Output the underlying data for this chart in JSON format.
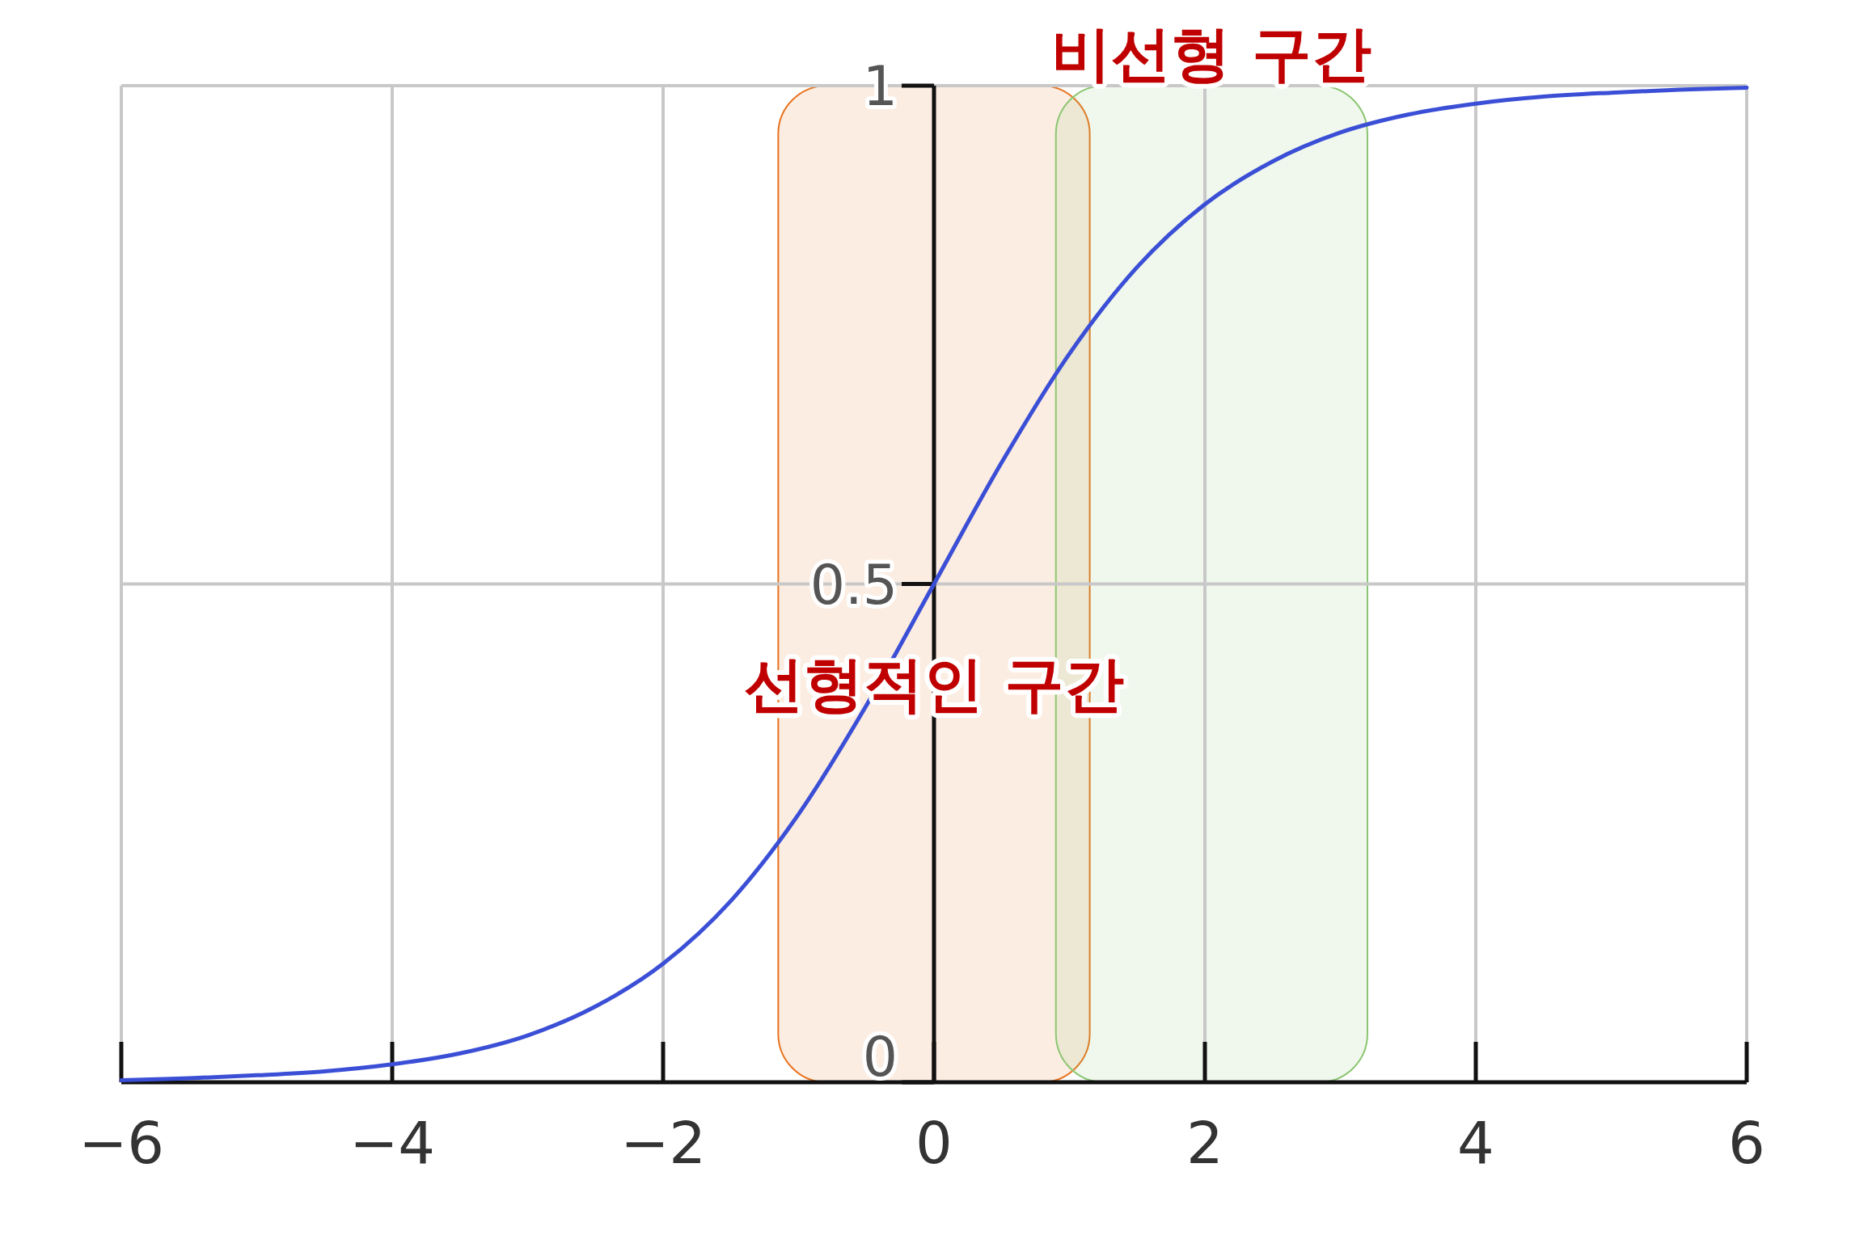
{
  "chart_data": {
    "type": "line",
    "x": [
      -6,
      -5.5,
      -5,
      -4.5,
      -4,
      -3.5,
      -3,
      -2.5,
      -2,
      -1.5,
      -1,
      -0.5,
      0,
      0.5,
      1,
      1.5,
      2,
      2.5,
      3,
      3.5,
      4,
      4.5,
      5,
      5.5,
      6
    ],
    "series": [
      {
        "color": "#3b4fd6",
        "values": [
          0.002,
          0.004,
          0.007,
          0.011,
          0.018,
          0.029,
          0.047,
          0.076,
          0.119,
          0.182,
          0.269,
          0.378,
          0.5,
          0.622,
          0.731,
          0.818,
          0.881,
          0.924,
          0.953,
          0.971,
          0.982,
          0.989,
          0.993,
          0.996,
          0.998
        ]
      }
    ],
    "xlim": [
      -6,
      6
    ],
    "ylim": [
      0,
      1
    ],
    "xticks": [
      {
        "value": -6,
        "label": "−6"
      },
      {
        "value": -4,
        "label": "−4"
      },
      {
        "value": -2,
        "label": "−2"
      },
      0,
      2,
      4,
      6
    ],
    "yticks": [
      0,
      0.5,
      1
    ],
    "grid": true,
    "bands": [
      {
        "axis": "x",
        "from": -1.15,
        "to": 1.15,
        "color": "#e8731f",
        "label": "선형적인 구간"
      },
      {
        "axis": "x",
        "from": 0.9,
        "to": 3.2,
        "color": "#8cc672",
        "label": "비선형 구간"
      }
    ]
  }
}
